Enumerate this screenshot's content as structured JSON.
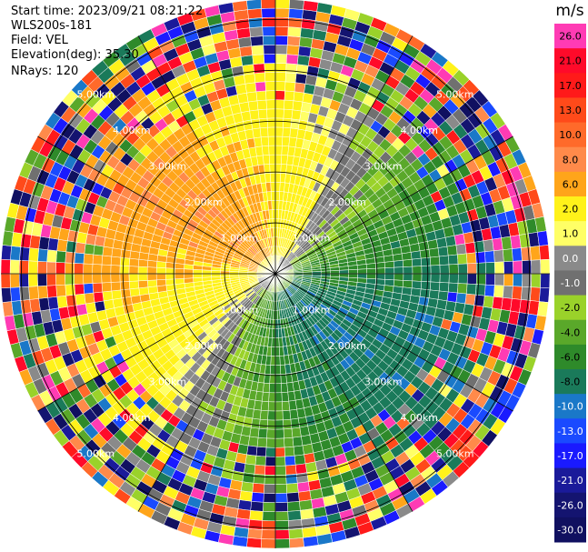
{
  "header": {
    "start_time": "Start time: 2023/09/21 08:21:22",
    "instrument": "WLS200s-181",
    "field": "Field: VEL",
    "elevation": "Elevation(deg): 35.30",
    "nrays": "NRays: 120"
  },
  "chart_data": {
    "type": "heatmap",
    "projection": "polar-ppi",
    "nrays": 120,
    "range_rings_km": [
      1.0,
      2.0,
      3.0,
      4.0,
      5.0
    ],
    "range_ring_labels": [
      "1.00km",
      "2.00km",
      "3.00km",
      "4.00km",
      "5.00km"
    ],
    "colorbar": {
      "unit": "m/s",
      "ticks": [
        "26.0",
        "21.0",
        "17.0",
        "13.0",
        "10.0",
        "8.0",
        "6.0",
        "2.0",
        "1.0",
        "0.0",
        "-1.0",
        "-2.0",
        "-4.0",
        "-6.0",
        "-8.0",
        "-10.0",
        "-13.0",
        "-17.0",
        "-21.0",
        "-26.0",
        "-30.0"
      ],
      "colors": [
        "#ff3bb4",
        "#ff0a2a",
        "#ff1a1a",
        "#ff4a1a",
        "#ff6a2a",
        "#ff8a4a",
        "#ffa51a",
        "#fff21a",
        "#ffff66",
        "#8a8a8a",
        "#707070",
        "#9ad22a",
        "#5aa82a",
        "#2e8a2a",
        "#1a7a5a",
        "#1a78c8",
        "#1a4aff",
        "#1a1aff",
        "#1a1a9a",
        "#141470",
        "#101060"
      ]
    }
  }
}
